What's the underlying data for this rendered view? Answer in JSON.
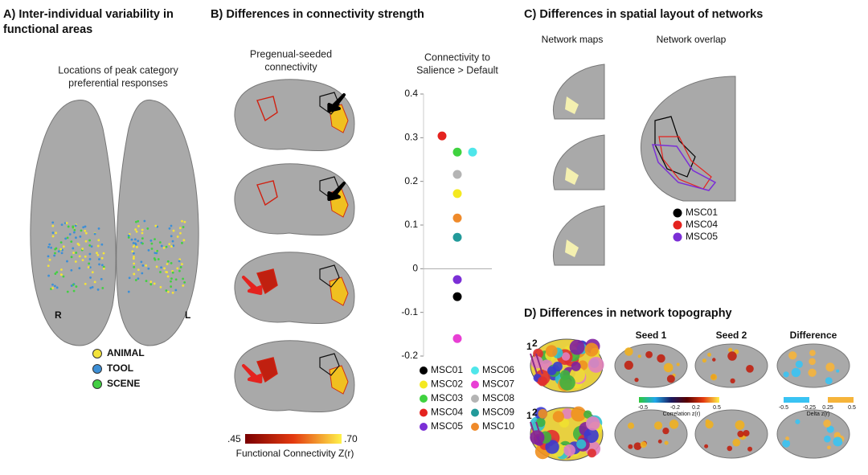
{
  "panel_a": {
    "title_lines": [
      "A) Inter-individual variability in",
      "functional areas"
    ],
    "subtitle_lines": [
      "Locations of peak category",
      "preferential responses"
    ],
    "left_label": "R",
    "right_label": "L",
    "legend": [
      {
        "label": "ANIMAL",
        "color": "#f3e33a"
      },
      {
        "label": "TOOL",
        "color": "#3d8fd6"
      },
      {
        "label": "SCENE",
        "color": "#43cf43"
      }
    ]
  },
  "panel_b": {
    "title": "B) Differences in connectivity strength",
    "map_title_lines": [
      "Pregenual-seeded",
      "connectivity"
    ],
    "colorbar": {
      "min_label": ".45",
      "max_label": ".70",
      "label": "Functional Connectivity Z(r)"
    }
  },
  "chart_data": {
    "type": "strip",
    "title_lines": [
      "Connectivity to",
      "Salience > Default"
    ],
    "ylim": [
      -0.2,
      0.4
    ],
    "yticks": [
      -0.2,
      -0.1,
      0,
      0.1,
      0.2,
      0.3,
      0.4
    ],
    "series": [
      {
        "name": "MSC01",
        "color": "#000000",
        "values": [
          -0.064
        ]
      },
      {
        "name": "MSC02",
        "color": "#f4e920",
        "values": [
          0.172
        ]
      },
      {
        "name": "MSC03",
        "color": "#3fd23f",
        "values": [
          0.267
        ]
      },
      {
        "name": "MSC04",
        "color": "#e4231f",
        "values": [
          0.304
        ]
      },
      {
        "name": "MSC05",
        "color": "#7b2fd6",
        "values": [
          -0.025
        ]
      },
      {
        "name": "MSC06",
        "color": "#4fe6ea",
        "values": [
          0.267
        ]
      },
      {
        "name": "MSC07",
        "color": "#e83fd4",
        "values": [
          -0.16
        ]
      },
      {
        "name": "MSC08",
        "color": "#b4b4b4",
        "values": [
          0.216
        ]
      },
      {
        "name": "MSC09",
        "color": "#229a9a",
        "values": [
          0.072
        ]
      },
      {
        "name": "MSC10",
        "color": "#ef8a2a",
        "values": [
          0.116
        ]
      }
    ]
  },
  "panel_c": {
    "title": "C) Differences in spatial layout of networks",
    "left_title": "Network maps",
    "right_title": "Network overlap",
    "legend": [
      {
        "label": "MSC01",
        "color": "#000000"
      },
      {
        "label": "MSC04",
        "color": "#e4231f"
      },
      {
        "label": "MSC05",
        "color": "#7b2fd6"
      }
    ]
  },
  "panel_d": {
    "title": "D)  Differences in network topography",
    "column_titles": [
      "Seed 1",
      "Seed 2",
      "Difference"
    ],
    "seed_labels": [
      "1",
      "2"
    ],
    "colorbar_corr": {
      "labels": [
        "-0.5",
        "-0.2",
        "0.2",
        "0.5"
      ],
      "title": "Correlation z(r)"
    },
    "colorbar_delta": {
      "labels": [
        "-0.5",
        "-0.25",
        "0.25",
        "0.5"
      ],
      "title": "Delta z(r)"
    }
  }
}
